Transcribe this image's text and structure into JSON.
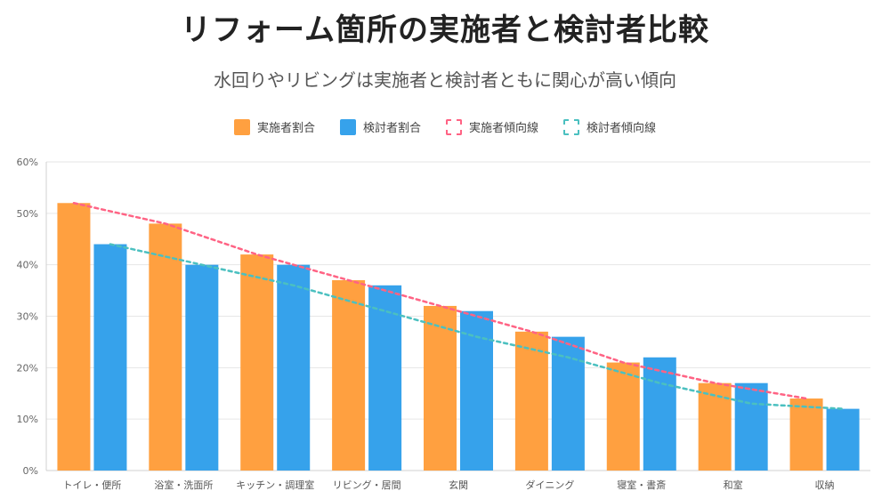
{
  "title": "リフォーム箇所の実施者と検討者比較",
  "subtitle": "水回りやリビングは実施者と検討者ともに関心が高い傾向",
  "legend": [
    {
      "label": "実施者割合",
      "kind": "bar",
      "color": "#FFA040"
    },
    {
      "label": "検討者割合",
      "kind": "bar",
      "color": "#36A2EB"
    },
    {
      "label": "実施者傾向線",
      "kind": "line",
      "color": "#FF6384"
    },
    {
      "label": "検討者傾向線",
      "kind": "line",
      "color": "#4BC0C0"
    }
  ],
  "chart_data": {
    "type": "bar",
    "title": "リフォーム箇所の実施者と検討者比較",
    "subtitle": "水回りやリビングは実施者と検討者ともに関心が高い傾向",
    "categories": [
      "トイレ・便所",
      "浴室・洗面所",
      "キッチン・調理室",
      "リビング・居間",
      "玄関",
      "ダイニング",
      "寝室・書斎",
      "和室",
      "収納"
    ],
    "series": [
      {
        "name": "実施者割合",
        "type": "bar",
        "color": "#FFA040",
        "values": [
          52,
          48,
          42,
          37,
          32,
          27,
          21,
          17,
          14
        ]
      },
      {
        "name": "検討者割合",
        "type": "bar",
        "color": "#36A2EB",
        "values": [
          44,
          40,
          40,
          36,
          31,
          26,
          22,
          17,
          12
        ]
      },
      {
        "name": "実施者傾向線",
        "type": "line",
        "dashed": true,
        "color": "#FF6384",
        "values": [
          52,
          48,
          42,
          37,
          32,
          27,
          21,
          17,
          14
        ]
      },
      {
        "name": "検討者傾向線",
        "type": "line",
        "dashed": true,
        "color": "#4BC0C0",
        "values": [
          44,
          40,
          36,
          31,
          26,
          22,
          17,
          13,
          12
        ]
      }
    ],
    "ylim": [
      0,
      60
    ],
    "yticks": [
      "0%",
      "10%",
      "20%",
      "30%",
      "40%",
      "50%",
      "60%"
    ],
    "grid": true,
    "legend_position": "top"
  }
}
